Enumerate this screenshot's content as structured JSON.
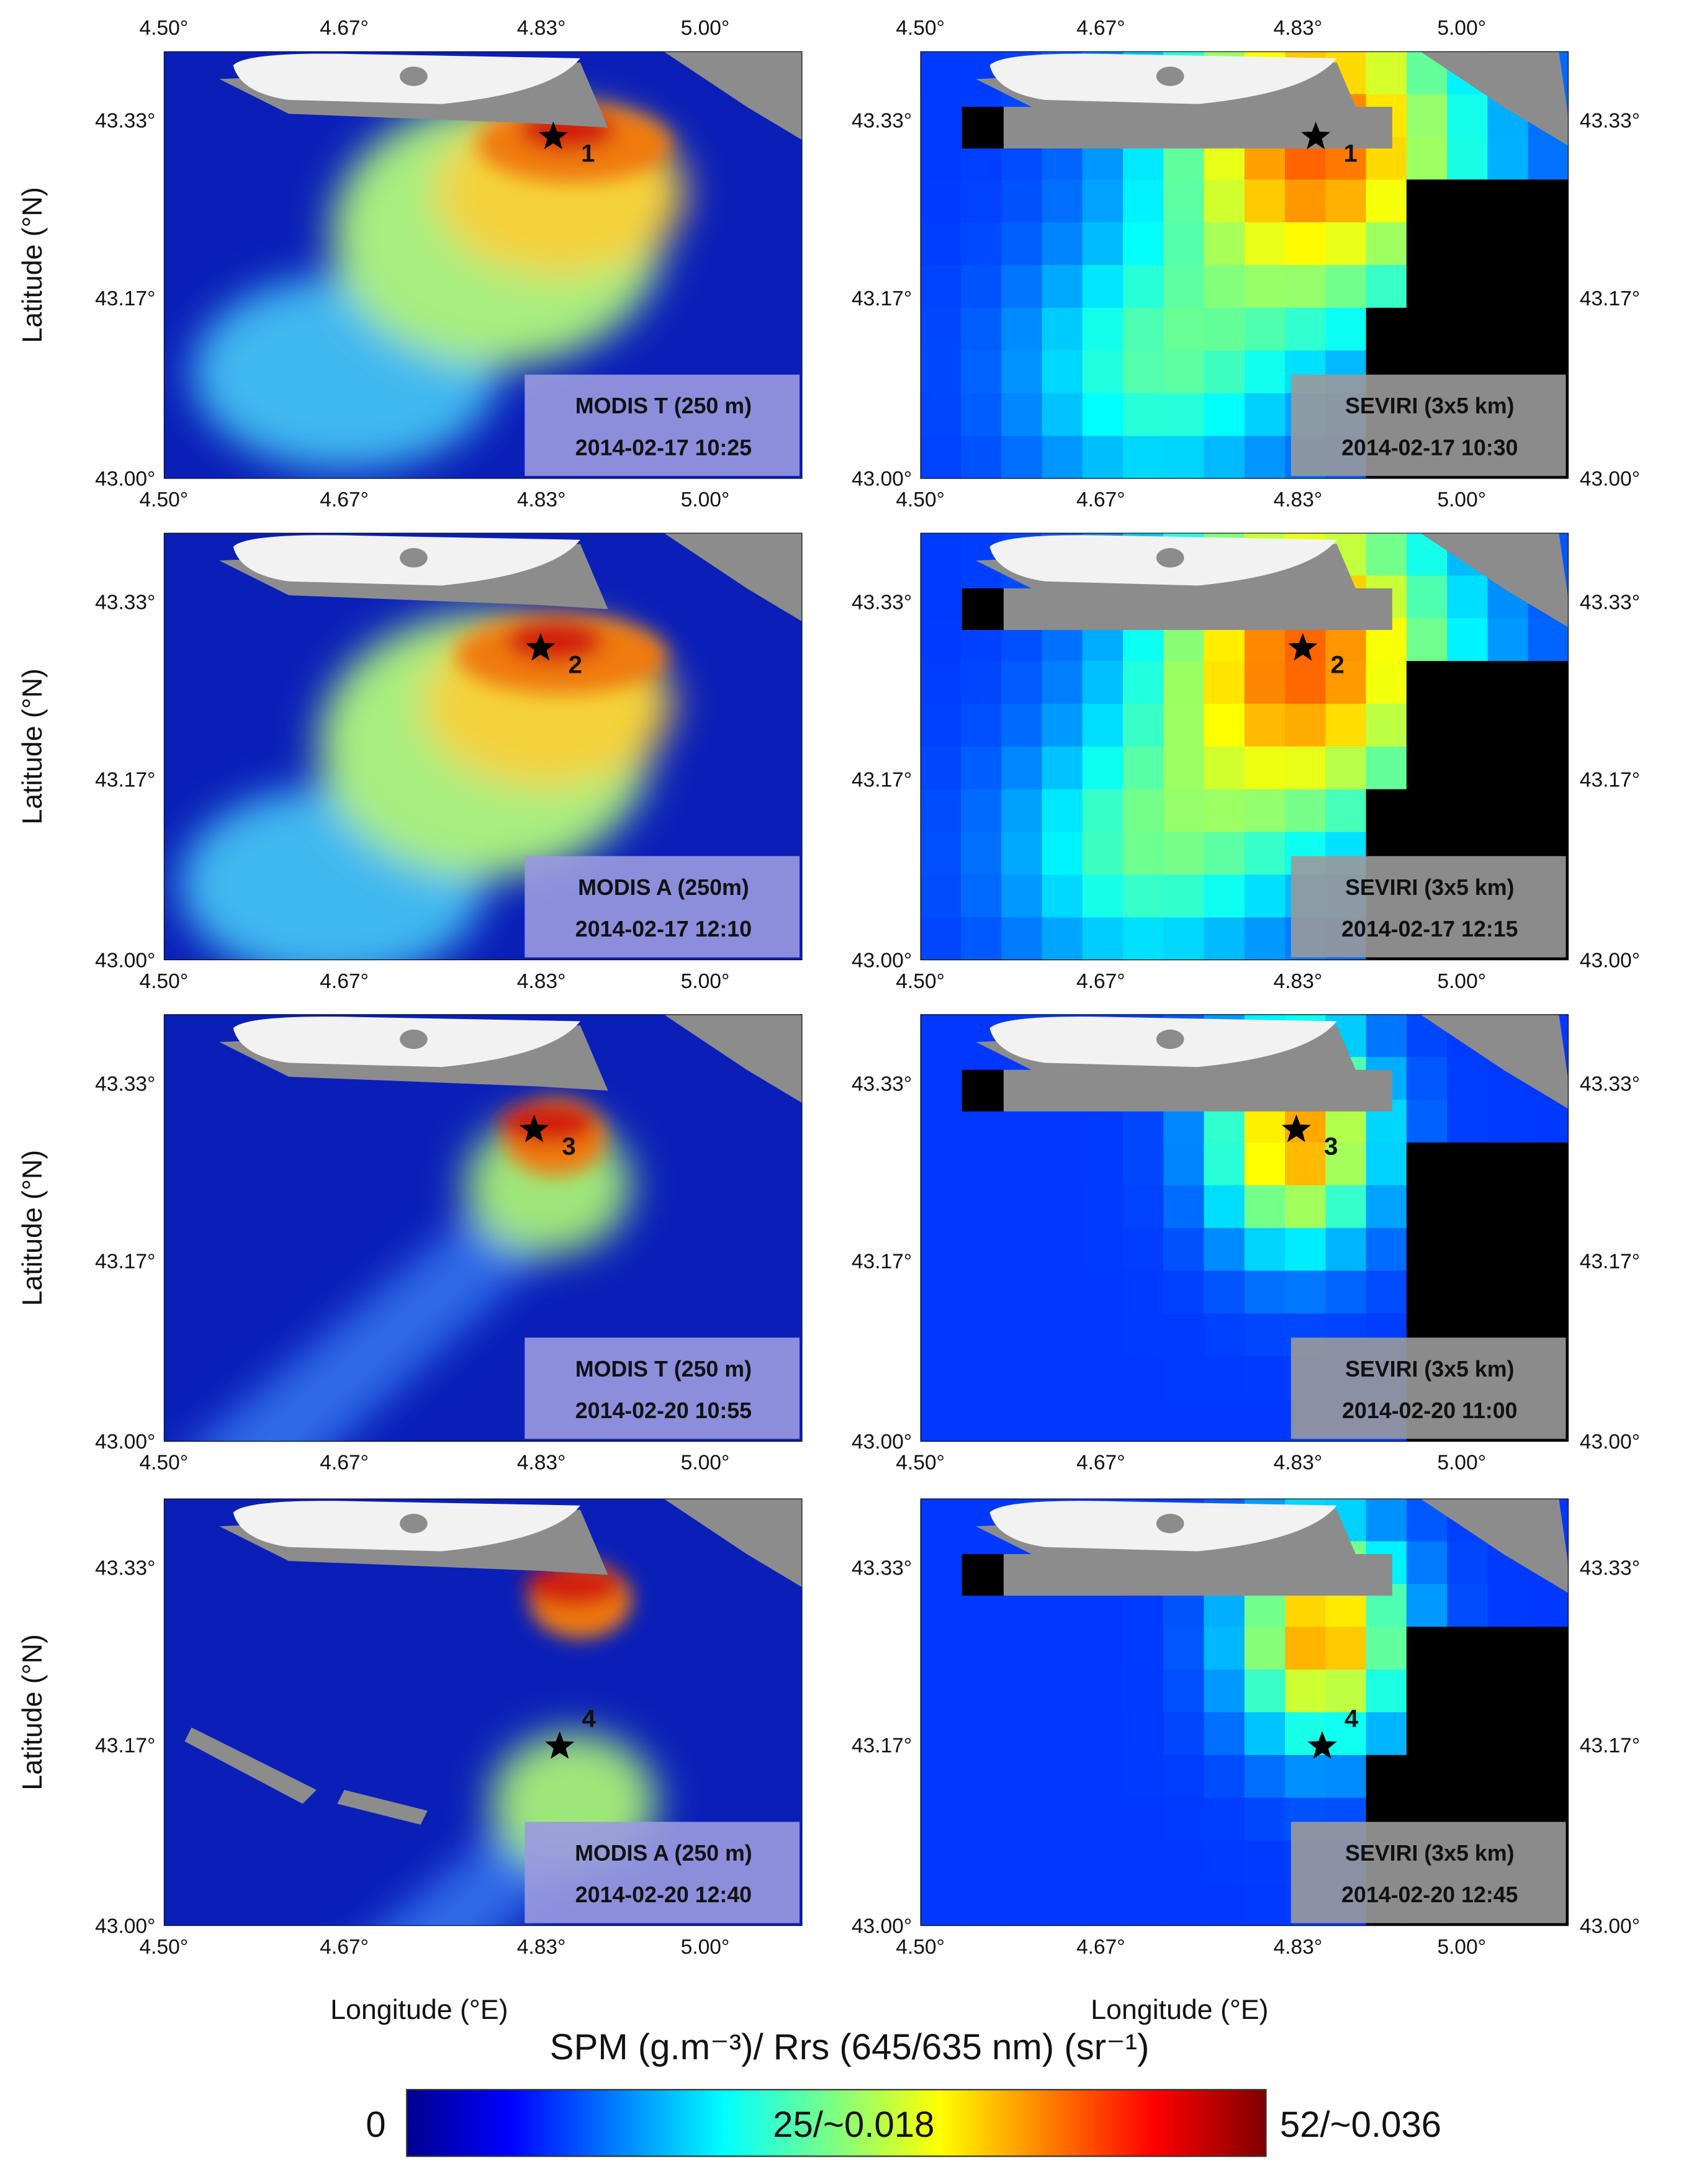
{
  "rows": [
    {
      "station": "1",
      "left": {
        "sensor": "MODIS T (250 m)",
        "time": "2014-02-17 10:25"
      },
      "right": {
        "sensor": "SEVIRI (3x5 km)",
        "time": "2014-02-17 10:30"
      }
    },
    {
      "station": "2",
      "left": {
        "sensor": "MODIS A (250m)",
        "time": "2014-02-17 12:10"
      },
      "right": {
        "sensor": "SEVIRI (3x5 km)",
        "time": "2014-02-17  12:15"
      }
    },
    {
      "station": "3",
      "left": {
        "sensor": "MODIS T (250 m)",
        "time": "2014-02-20 10:55"
      },
      "right": {
        "sensor": "SEVIRI (3x5 km)",
        "time": "2014-02-20 11:00"
      }
    },
    {
      "station": "4",
      "left": {
        "sensor": "MODIS A (250 m)",
        "time": "2014-02-20 12:40"
      },
      "right": {
        "sensor": "SEVIRI (3x5 km)",
        "time": "2014-02-20 12:45"
      }
    }
  ],
  "axes": {
    "xticks": [
      "4.50°",
      "4.67°",
      "4.83°",
      "5.00°"
    ],
    "yticks": [
      "43.33°",
      "43.17°",
      "43.00°"
    ],
    "xlabel": "Longitude (°E)",
    "ylabel": "Latitude (°N)"
  },
  "colorbar": {
    "title": "SPM (g.m⁻³)/ Rrs (645/635 nm) (sr⁻¹)",
    "min": "0",
    "mid": "25/~0.018",
    "max": "52/~0.036"
  }
}
